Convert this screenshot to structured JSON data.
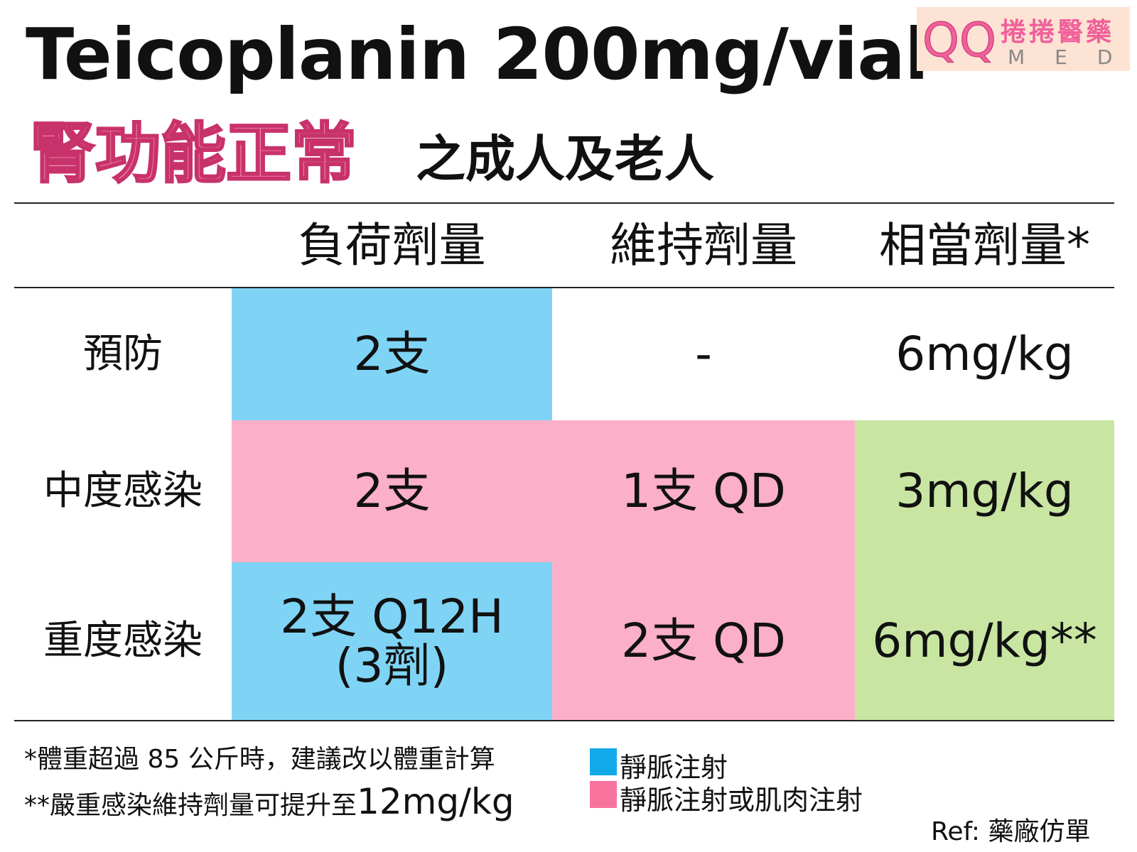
{
  "title": "Teicoplanin 200mg/vial",
  "subtitle": {
    "highlight": "腎功能正常",
    "rest": "之成人及老人"
  },
  "logo": {
    "mark": "QQ",
    "name": "捲捲醫藥",
    "sub": "MED"
  },
  "table": {
    "header": [
      "負荷劑量",
      "維持劑量",
      "相當劑量*"
    ],
    "rows": [
      {
        "label": "預防",
        "cells": [
          "2支",
          "-",
          "6mg/kg"
        ]
      },
      {
        "label": "中度感染",
        "cells": [
          "2支",
          "1支 QD",
          "3mg/kg"
        ]
      },
      {
        "label": "重度感染",
        "cells": [
          [
            "2支 Q12H",
            "(3劑)"
          ],
          "2支 QD",
          "6mg/kg**"
        ]
      }
    ]
  },
  "notes": [
    "*體重超過 85 公斤時，建議改以體重計算",
    {
      "text": "**嚴重感染維持劑量可提升至",
      "emphasis": "12mg/kg"
    }
  ],
  "legend": [
    {
      "label": "靜脈注射",
      "color": "#12a9ea"
    },
    {
      "label": "靜脈注射或肌肉注射",
      "color": "#f7739e"
    }
  ],
  "ref": "Ref: 藥廠仿單"
}
